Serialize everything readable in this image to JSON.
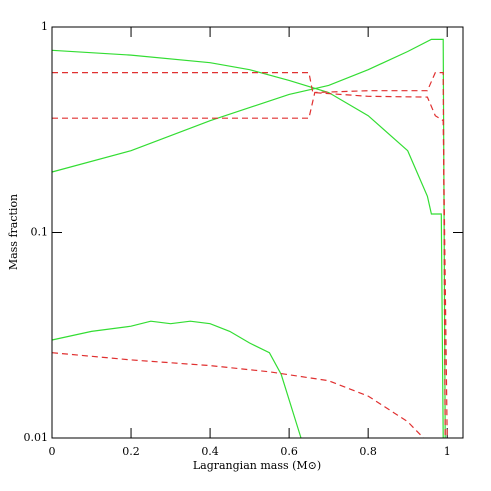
{
  "chart_data": {
    "type": "line",
    "xlabel": "Lagrangian mass (M⊙)",
    "ylabel": "Mass fraction",
    "xlim": [
      0,
      1.04
    ],
    "ylim": [
      0.01,
      1
    ],
    "ylog": true,
    "xticks": [
      0,
      0.2,
      0.4,
      0.6,
      0.8,
      1
    ],
    "yticks": [
      0.01,
      0.1,
      1
    ],
    "series": [
      {
        "color": "#33dd33",
        "dash": false,
        "x": [
          0,
          0.2,
          0.4,
          0.5,
          0.6,
          0.7,
          0.8,
          0.9,
          0.95,
          0.96,
          0.985,
          0.99
        ],
        "values": [
          0.77,
          0.73,
          0.67,
          0.62,
          0.55,
          0.48,
          0.37,
          0.25,
          0.15,
          0.123,
          0.123,
          0.01
        ]
      },
      {
        "color": "#33dd33",
        "dash": false,
        "x": [
          0,
          0.2,
          0.4,
          0.6,
          0.7,
          0.8,
          0.9,
          0.96,
          0.99,
          0.995
        ],
        "values": [
          0.197,
          0.25,
          0.35,
          0.47,
          0.52,
          0.62,
          0.76,
          0.87,
          0.87,
          0.01
        ]
      },
      {
        "color": "#33dd33",
        "dash": false,
        "x": [
          0,
          0.1,
          0.2,
          0.25,
          0.3,
          0.35,
          0.4,
          0.45,
          0.5,
          0.55,
          0.58,
          0.63
        ],
        "values": [
          0.03,
          0.033,
          0.035,
          0.037,
          0.036,
          0.037,
          0.036,
          0.033,
          0.029,
          0.026,
          0.0204,
          0.01
        ]
      },
      {
        "color": "#e03030",
        "dash": true,
        "x": [
          0,
          0.65,
          0.66,
          0.8,
          0.95,
          0.97,
          0.99,
          1.0
        ],
        "values": [
          0.6,
          0.6,
          0.48,
          0.46,
          0.456,
          0.37,
          0.35,
          0.01
        ]
      },
      {
        "color": "#e03030",
        "dash": true,
        "x": [
          0,
          0.65,
          0.665,
          0.8,
          0.95,
          0.97,
          0.99,
          0.995
        ],
        "values": [
          0.36,
          0.36,
          0.48,
          0.49,
          0.49,
          0.6,
          0.6,
          0.01
        ]
      },
      {
        "color": "#e03030",
        "dash": true,
        "x": [
          0,
          0.2,
          0.4,
          0.55,
          0.7,
          0.8,
          0.9,
          0.94
        ],
        "values": [
          0.026,
          0.024,
          0.0225,
          0.021,
          0.019,
          0.016,
          0.012,
          0.01
        ]
      }
    ]
  }
}
